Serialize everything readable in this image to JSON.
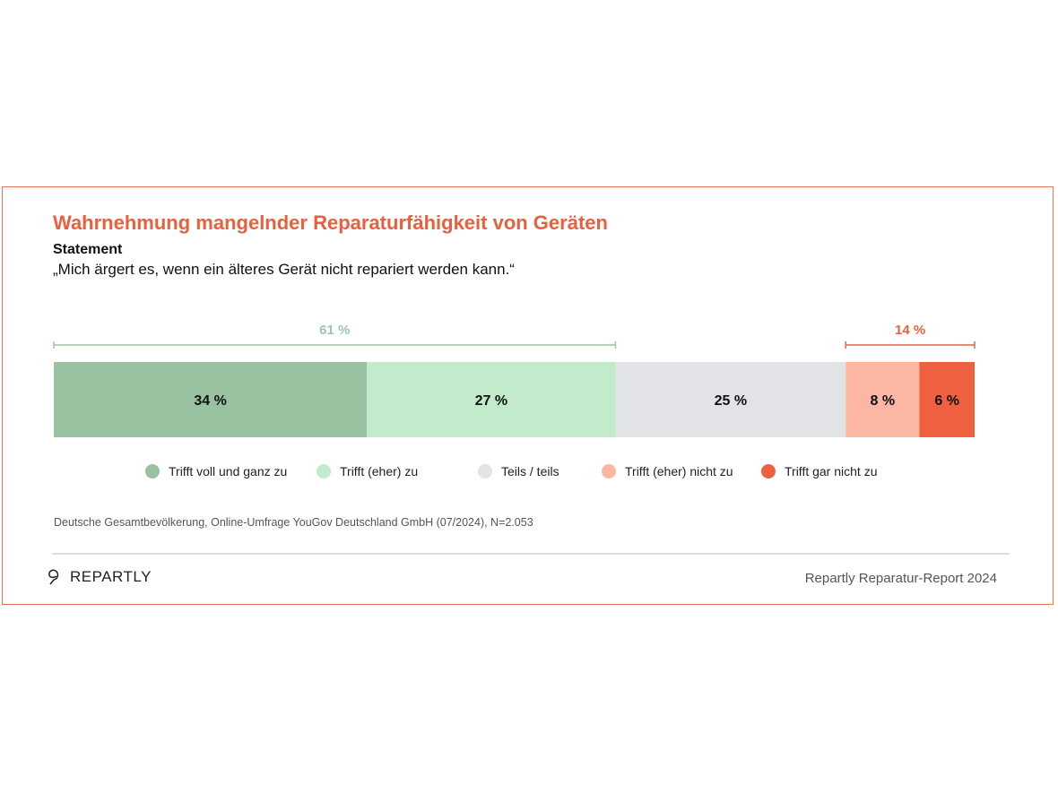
{
  "title": "Wahrnehmung mangelnder Reparaturfähigkeit von Geräten",
  "statement_label": "Statement",
  "statement": "„Mich ärgert es, wenn ein älteres Gerät nicht repariert werden kann.“",
  "chart_data": {
    "type": "bar",
    "orientation": "horizontal-stacked",
    "categories": [
      "Trifft voll und ganz zu",
      "Trifft (eher) zu",
      "Teils / teils",
      "Trifft (eher) nicht zu",
      "Trifft gar nicht zu"
    ],
    "values": [
      34,
      27,
      25,
      8,
      6
    ],
    "labels": [
      "34 %",
      "27 %",
      "25 %",
      "8 %",
      "6 %"
    ],
    "colors": [
      "#99c2a0",
      "#c1ebcb",
      "#e2e3e7",
      "#fcb7a4",
      "#ef6041"
    ],
    "brackets": [
      {
        "label": "61 %",
        "from": 0,
        "to": 2,
        "color": "#9cc6a4"
      },
      {
        "label": "14 %",
        "from": 3,
        "to": 5,
        "color": "#e8613f"
      }
    ],
    "legend_position": "bottom"
  },
  "source": "Deutsche Gesamtbevölkerung, Online-Umfrage YouGov Deutschland GmbH (07/2024), N=2.053",
  "logo": "REPARTLY",
  "report": "Repartly Reparatur-Report 2024"
}
